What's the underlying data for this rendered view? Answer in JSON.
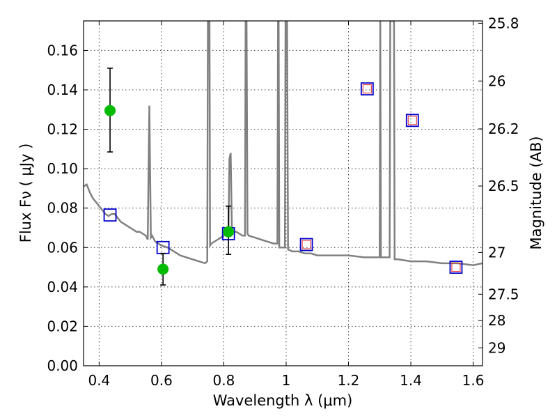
{
  "chart_data": {
    "type": "scatter",
    "xlabel": "Wavelength  λ (μm)",
    "ylabel": "Flux  Fν  ( μJy )",
    "y2label": "Magnitude (AB)",
    "xlim": [
      0.35,
      1.63
    ],
    "ylim": [
      0.0,
      0.175
    ],
    "grid": true,
    "xticks": [
      0.4,
      0.6,
      0.8,
      1.0,
      1.2,
      1.4,
      1.6
    ],
    "xtick_labels": [
      "0.4",
      "0.6",
      "0.8",
      "1",
      "1.2",
      "1.4",
      "1.6"
    ],
    "yticks": [
      0.0,
      0.02,
      0.04,
      0.06,
      0.08,
      0.1,
      0.12,
      0.14,
      0.16
    ],
    "ytick_labels": [
      "0.00",
      "0.02",
      "0.04",
      "0.06",
      "0.08",
      "0.10",
      "0.12",
      "0.14",
      "0.16"
    ],
    "y2_ticks": [
      {
        "label": "25.8",
        "flux": 0.1738
      },
      {
        "label": "26",
        "flux": 0.1445
      },
      {
        "label": "26.2",
        "flux": 0.1202
      },
      {
        "label": "26.5",
        "flux": 0.0912
      },
      {
        "label": "27",
        "flux": 0.0575
      },
      {
        "label": "27.5",
        "flux": 0.0363
      },
      {
        "label": "28",
        "flux": 0.0229
      },
      {
        "label": "29",
        "flux": 0.0091
      }
    ],
    "colors": {
      "sed": "#808080",
      "photometry": "#00bb00",
      "model": "#0000cc",
      "model_inner": "#dd2222",
      "errorbar": "#000000"
    },
    "series": [
      {
        "kind": "sed_line",
        "x": [
          0.35,
          0.36,
          0.37,
          0.38,
          0.39,
          0.4,
          0.41,
          0.42,
          0.43,
          0.44,
          0.45,
          0.46,
          0.47,
          0.48,
          0.49,
          0.5,
          0.51,
          0.52,
          0.53,
          0.54,
          0.55,
          0.556,
          0.561,
          0.566,
          0.57,
          0.58,
          0.6,
          0.62,
          0.64,
          0.66,
          0.68,
          0.7,
          0.72,
          0.74,
          0.747,
          0.749,
          0.751,
          0.754,
          0.756,
          0.76,
          0.78,
          0.8,
          0.81,
          0.815,
          0.818,
          0.822,
          0.826,
          0.83,
          0.84,
          0.86,
          0.868,
          0.87,
          0.873,
          0.876,
          0.88,
          0.9,
          0.92,
          0.94,
          0.96,
          0.972,
          0.974,
          0.976,
          0.978,
          0.99,
          0.996,
          0.998,
          1.0,
          1.003,
          1.006,
          1.02,
          1.04,
          1.06,
          1.08,
          1.1,
          1.15,
          1.2,
          1.25,
          1.29,
          1.3,
          1.302,
          1.304,
          1.32,
          1.332,
          1.334,
          1.336,
          1.344,
          1.346,
          1.348,
          1.36,
          1.4,
          1.45,
          1.5,
          1.55,
          1.6,
          1.63
        ],
        "y": [
          0.091,
          0.092,
          0.088,
          0.085,
          0.083,
          0.081,
          0.079,
          0.077,
          0.076,
          0.077,
          0.077,
          0.075,
          0.073,
          0.072,
          0.071,
          0.07,
          0.069,
          0.068,
          0.068,
          0.067,
          0.066,
          0.064,
          0.132,
          0.065,
          0.066,
          0.063,
          0.061,
          0.06,
          0.058,
          0.056,
          0.055,
          0.054,
          0.053,
          0.052,
          0.053,
          0.175,
          0.175,
          0.175,
          0.061,
          0.062,
          0.064,
          0.066,
          0.068,
          0.07,
          0.105,
          0.108,
          0.069,
          0.068,
          0.068,
          0.066,
          0.066,
          0.175,
          0.175,
          0.067,
          0.066,
          0.065,
          0.064,
          0.063,
          0.062,
          0.062,
          0.175,
          0.175,
          0.06,
          0.06,
          0.06,
          0.175,
          0.175,
          0.175,
          0.059,
          0.058,
          0.058,
          0.057,
          0.057,
          0.056,
          0.056,
          0.056,
          0.055,
          0.055,
          0.055,
          0.175,
          0.055,
          0.055,
          0.055,
          0.175,
          0.175,
          0.175,
          0.175,
          0.054,
          0.054,
          0.053,
          0.053,
          0.052,
          0.052,
          0.051,
          0.052
        ]
      },
      {
        "kind": "photometry",
        "points": [
          {
            "x": 0.435,
            "y": 0.1295,
            "yerr_low": 0.1085,
            "yerr_high": 0.151
          },
          {
            "x": 0.605,
            "y": 0.049,
            "yerr_low": 0.041,
            "yerr_high": 0.057
          },
          {
            "x": 0.815,
            "y": 0.068,
            "yerr_low": 0.0565,
            "yerr_high": 0.081
          }
        ]
      },
      {
        "kind": "model_open_square",
        "points": [
          {
            "x": 0.435,
            "y": 0.0765
          },
          {
            "x": 0.605,
            "y": 0.06
          },
          {
            "x": 0.815,
            "y": 0.067
          },
          {
            "x": 1.065,
            "y": 0.0615
          },
          {
            "x": 1.26,
            "y": 0.1405
          },
          {
            "x": 1.405,
            "y": 0.1245
          },
          {
            "x": 1.545,
            "y": 0.05
          }
        ]
      },
      {
        "kind": "model_inner_square",
        "points": [
          {
            "x": 1.065,
            "y": 0.0615
          },
          {
            "x": 1.26,
            "y": 0.1405
          },
          {
            "x": 1.405,
            "y": 0.1245
          },
          {
            "x": 1.545,
            "y": 0.05
          }
        ]
      }
    ]
  }
}
